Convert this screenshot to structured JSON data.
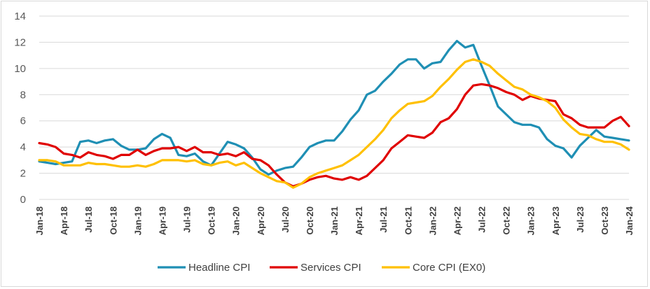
{
  "chart_data": {
    "type": "line",
    "title": "",
    "xlabel": "",
    "ylabel": "",
    "ylim": [
      0,
      14
    ],
    "yticks": [
      0,
      2,
      4,
      6,
      8,
      10,
      12,
      14
    ],
    "grid": "horizontal",
    "legend_position": "bottom",
    "x": [
      "Jan-18",
      "Feb-18",
      "Mar-18",
      "Apr-18",
      "May-18",
      "Jun-18",
      "Jul-18",
      "Aug-18",
      "Sep-18",
      "Oct-18",
      "Nov-18",
      "Dec-18",
      "Jan-19",
      "Feb-19",
      "Mar-19",
      "Apr-19",
      "May-19",
      "Jun-19",
      "Jul-19",
      "Aug-19",
      "Sep-19",
      "Oct-19",
      "Nov-19",
      "Dec-19",
      "Jan-20",
      "Feb-20",
      "Mar-20",
      "Apr-20",
      "May-20",
      "Jun-20",
      "Jul-20",
      "Aug-20",
      "Sep-20",
      "Oct-20",
      "Nov-20",
      "Dec-20",
      "Jan-21",
      "Feb-21",
      "Mar-21",
      "Apr-21",
      "May-21",
      "Jun-21",
      "Jul-21",
      "Aug-21",
      "Sep-21",
      "Oct-21",
      "Nov-21",
      "Dec-21",
      "Jan-22",
      "Feb-22",
      "Mar-22",
      "Apr-22",
      "May-22",
      "Jun-22",
      "Jul-22",
      "Aug-22",
      "Sep-22",
      "Oct-22",
      "Nov-22",
      "Dec-22",
      "Jan-23",
      "Feb-23",
      "Mar-23",
      "Apr-23",
      "May-23",
      "Jun-23",
      "Jul-23",
      "Aug-23",
      "Sep-23",
      "Oct-23",
      "Nov-23",
      "Dec-23",
      "Jan-24"
    ],
    "x_tick_labels": [
      "Jan-18",
      "Apr-18",
      "Jul-18",
      "Oct-18",
      "Jan-19",
      "Apr-19",
      "Jul-19",
      "Oct-19",
      "Jan-20",
      "Apr-20",
      "Jul-20",
      "Oct-20",
      "Jan-21",
      "Apr-21",
      "Jul-21",
      "Oct-21",
      "Jan-22",
      "Apr-22",
      "Jul-22",
      "Oct-22",
      "Jan-23",
      "Apr-23",
      "Jul-23",
      "Oct-23",
      "Jan-24"
    ],
    "series": [
      {
        "name": "Headline CPI",
        "color": "#1f8fb4",
        "values": [
          2.9,
          2.8,
          2.7,
          2.8,
          2.9,
          4.4,
          4.5,
          4.3,
          4.5,
          4.6,
          4.1,
          3.8,
          3.8,
          3.9,
          4.6,
          5.0,
          4.7,
          3.4,
          3.3,
          3.5,
          2.9,
          2.6,
          3.5,
          4.4,
          4.2,
          3.9,
          3.2,
          2.3,
          1.9,
          2.2,
          2.4,
          2.5,
          3.2,
          4.0,
          4.3,
          4.5,
          4.5,
          5.2,
          6.1,
          6.8,
          8.0,
          8.3,
          9.0,
          9.6,
          10.3,
          10.7,
          10.7,
          10.0,
          10.4,
          10.5,
          11.4,
          12.1,
          11.6,
          11.8,
          10.2,
          8.7,
          7.1,
          6.5,
          5.9,
          5.7,
          5.7,
          5.5,
          4.6,
          4.1,
          3.9,
          3.2,
          4.1,
          4.7,
          5.3,
          4.8,
          4.7,
          4.6,
          4.5
        ]
      },
      {
        "name": "Services CPI",
        "color": "#e00000",
        "values": [
          4.3,
          4.2,
          4.0,
          3.5,
          3.4,
          3.2,
          3.6,
          3.4,
          3.3,
          3.1,
          3.4,
          3.4,
          3.8,
          3.4,
          3.7,
          3.9,
          3.9,
          4.0,
          3.7,
          4.0,
          3.6,
          3.6,
          3.4,
          3.5,
          3.3,
          3.6,
          3.1,
          3.0,
          2.6,
          1.9,
          1.3,
          1.0,
          1.2,
          1.5,
          1.7,
          1.8,
          1.6,
          1.5,
          1.7,
          1.5,
          1.8,
          2.4,
          3.0,
          3.9,
          4.4,
          4.9,
          4.8,
          4.7,
          5.1,
          5.9,
          6.2,
          6.9,
          8.0,
          8.7,
          8.8,
          8.7,
          8.5,
          8.2,
          8.0,
          7.6,
          7.9,
          7.7,
          7.6,
          7.5,
          6.5,
          6.2,
          5.7,
          5.5,
          5.5,
          5.5,
          6.0,
          6.3,
          5.6
        ]
      },
      {
        "name": "Core CPI (EX0)",
        "color": "#ffc000",
        "values": [
          3.0,
          3.0,
          2.9,
          2.6,
          2.6,
          2.6,
          2.8,
          2.7,
          2.7,
          2.6,
          2.5,
          2.5,
          2.6,
          2.5,
          2.7,
          3.0,
          3.0,
          3.0,
          2.9,
          3.0,
          2.7,
          2.6,
          2.8,
          2.9,
          2.6,
          2.8,
          2.4,
          2.0,
          1.7,
          1.4,
          1.3,
          0.9,
          1.2,
          1.7,
          2.0,
          2.2,
          2.4,
          2.6,
          3.0,
          3.4,
          4.0,
          4.6,
          5.3,
          6.2,
          6.8,
          7.3,
          7.4,
          7.5,
          7.9,
          8.6,
          9.2,
          9.9,
          10.5,
          10.7,
          10.5,
          10.2,
          9.6,
          9.1,
          8.6,
          8.4,
          8.0,
          7.8,
          7.5,
          7.0,
          6.1,
          5.5,
          5.0,
          4.9,
          4.6,
          4.4,
          4.4,
          4.2,
          3.8
        ]
      }
    ]
  }
}
